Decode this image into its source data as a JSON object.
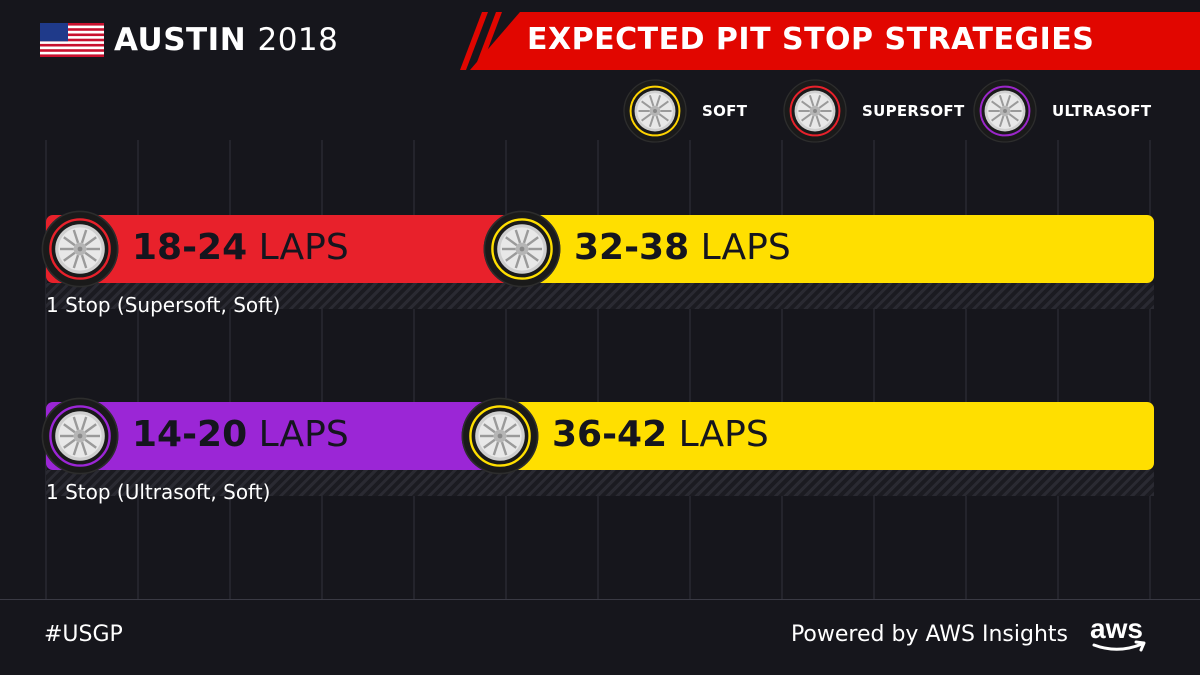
{
  "header": {
    "race_name": "AUSTIN",
    "race_year": "2018",
    "title": "EXPECTED PIT STOP STRATEGIES",
    "flag_icon": "usa-flag-icon"
  },
  "legend": [
    {
      "label": "SOFT",
      "color": "#ffd400"
    },
    {
      "label": "SUPERSOFT",
      "color": "#e8212b"
    },
    {
      "label": "ULTRASOFT",
      "color": "#9b26c9"
    }
  ],
  "chart_data": {
    "type": "bar",
    "title": "EXPECTED PIT STOP STRATEGIES",
    "orientation": "horizontal-stacked",
    "series": [
      {
        "name": "1 Stop (Supersoft, Soft)",
        "stints": [
          {
            "compound": "SUPERSOFT",
            "color": "#e8212b",
            "range": "18-24",
            "low": 18,
            "high": 24,
            "unit": "LAPS",
            "share": 0.43
          },
          {
            "compound": "SOFT",
            "color": "#ffdf00",
            "range": "32-38",
            "low": 32,
            "high": 38,
            "unit": "LAPS",
            "share": 0.57
          }
        ]
      },
      {
        "name": "1 Stop (Ultrasoft, Soft)",
        "stints": [
          {
            "compound": "ULTRASOFT",
            "color": "#9b26d6",
            "range": "14-20",
            "low": 14,
            "high": 20,
            "unit": "LAPS",
            "share": 0.41
          },
          {
            "compound": "SOFT",
            "color": "#ffdf00",
            "range": "36-42",
            "low": 36,
            "high": 42,
            "unit": "LAPS",
            "share": 0.59
          }
        ]
      }
    ]
  },
  "footer": {
    "hashtag": "#USGP",
    "powered_by": "Powered by AWS Insights",
    "logo_text": "aws"
  }
}
